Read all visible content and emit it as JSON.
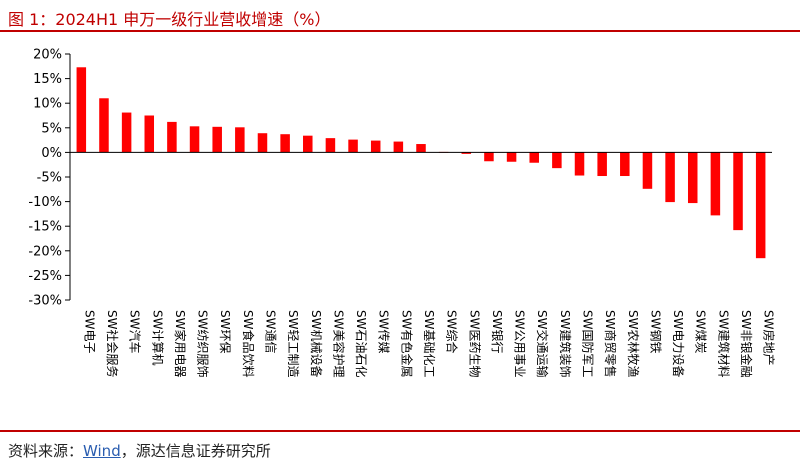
{
  "title": "图 1：2024H1 申万一级行业营收增速（%）",
  "source": {
    "prefix": "资料来源：",
    "wind": "Wind",
    "suffix": "，源达信息证券研究所"
  },
  "chart_data": {
    "type": "bar",
    "title": "图 1：2024H1 申万一级行业营收增速（%）",
    "xlabel": "",
    "ylabel": "",
    "ylim": [
      -30,
      20
    ],
    "yticks": [
      20,
      15,
      10,
      5,
      0,
      -5,
      -10,
      -15,
      -20,
      -25,
      -30
    ],
    "ytick_labels": [
      "20%",
      "15%",
      "10%",
      "5%",
      "0%",
      "-5%",
      "-10%",
      "-15%",
      "-20%",
      "-25%",
      "-30%"
    ],
    "grid": false,
    "legend": "none",
    "bar_color": "#ff0000",
    "categories": [
      "SW电子",
      "SW社会服务",
      "SW汽车",
      "SW计算机",
      "SW家用电器",
      "SW纺织服饰",
      "SW环保",
      "SW食品饮料",
      "SW通信",
      "SW轻工制造",
      "SW机械设备",
      "SW美容护理",
      "SW石油石化",
      "SW传媒",
      "SW有色金属",
      "SW基础化工",
      "SW综合",
      "SW医药生物",
      "SW银行",
      "SW公用事业",
      "SW交通运输",
      "SW建筑装饰",
      "SW国防军工",
      "SW商贸零售",
      "SW农林牧渔",
      "SW钢铁",
      "SW电力设备",
      "SW煤炭",
      "SW建筑材料",
      "SW非银金融",
      "SW房地产"
    ],
    "values": [
      17.3,
      11.0,
      8.1,
      7.5,
      6.2,
      5.3,
      5.2,
      5.1,
      3.9,
      3.7,
      3.4,
      2.9,
      2.6,
      2.4,
      2.2,
      1.7,
      0.1,
      -0.3,
      -1.8,
      -1.9,
      -2.1,
      -3.2,
      -4.7,
      -4.8,
      -4.8,
      -7.4,
      -10.1,
      -10.3,
      -12.8,
      -15.8,
      -21.5
    ]
  }
}
